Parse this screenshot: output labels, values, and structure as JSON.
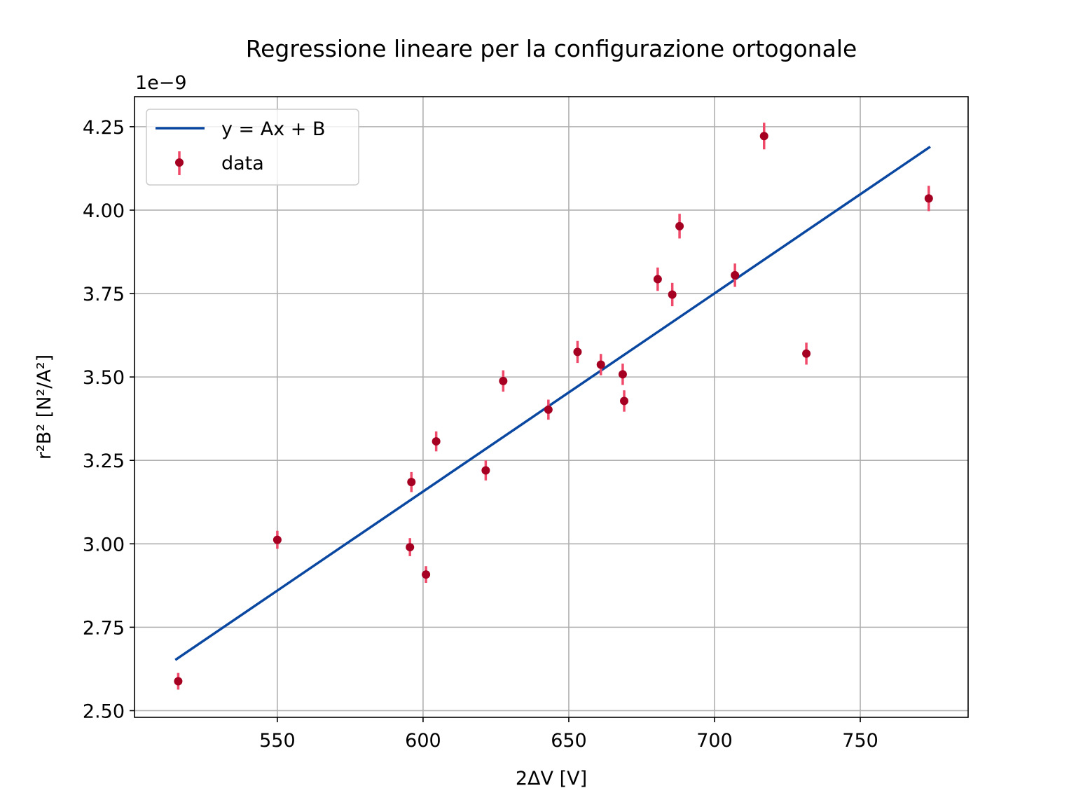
{
  "chart_data": {
    "type": "scatter",
    "title": "Regressione lineare per la configurazione ortogonale",
    "xlabel": "2ΔV [V]",
    "ylabel": "r²B² [N²/A²]",
    "y_offset_label": "1e−9",
    "y_scale": 1e-09,
    "xlim": [
      501,
      787
    ],
    "ylim": [
      2.48,
      4.34
    ],
    "x_ticks": [
      550,
      600,
      650,
      700,
      750
    ],
    "x_tick_labels": [
      "550",
      "600",
      "650",
      "700",
      "750"
    ],
    "y_ticks": [
      2.5,
      2.75,
      3.0,
      3.25,
      3.5,
      3.75,
      4.0,
      4.25
    ],
    "y_tick_labels": [
      "2.50",
      "2.75",
      "3.00",
      "3.25",
      "3.50",
      "3.75",
      "4.00",
      "4.25"
    ],
    "grid": true,
    "legend_position": "top-left",
    "colors": {
      "line": "#0a47a1",
      "points": "#a50021",
      "errorbars": "#ef4a6a"
    },
    "series": [
      {
        "name": "y = Ax + B",
        "kind": "line",
        "x": [
          515,
          774
        ],
        "y": [
          2.652,
          4.19
        ]
      },
      {
        "name": "data",
        "kind": "errorbar",
        "x": [
          516,
          550,
          595.5,
          596,
          601,
          604.5,
          621.5,
          627.5,
          643,
          653,
          661,
          668.5,
          669,
          680.5,
          685.5,
          688,
          707,
          717,
          731.5,
          773.5
        ],
        "y": [
          2.588,
          3.012,
          2.99,
          3.185,
          2.908,
          3.307,
          3.22,
          3.488,
          3.402,
          3.575,
          3.537,
          3.508,
          3.428,
          3.793,
          3.747,
          3.952,
          3.805,
          4.222,
          3.57,
          4.035
        ],
        "yerr": [
          0.025,
          0.027,
          0.027,
          0.03,
          0.025,
          0.03,
          0.03,
          0.032,
          0.03,
          0.033,
          0.032,
          0.032,
          0.032,
          0.035,
          0.035,
          0.037,
          0.035,
          0.04,
          0.033,
          0.038
        ]
      }
    ]
  }
}
